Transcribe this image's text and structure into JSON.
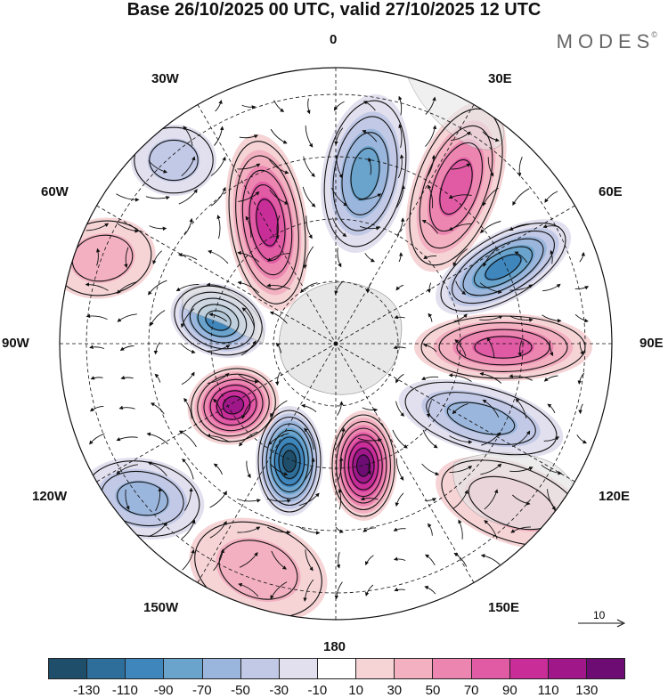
{
  "title": "Base 26/10/2025 00 UTC, valid 27/10/2025 12 UTC",
  "brand": "MODES",
  "brand_mark": "©",
  "longitude_labels": {
    "lon0": "0",
    "lon30e": "30E",
    "lon60e": "60E",
    "lon90e": "90E",
    "lon120e": "120E",
    "lon150e": "150E",
    "lon180": "180",
    "lon150w": "150W",
    "lon120w": "120W",
    "lon90w": "90W",
    "lon60w": "60W",
    "lon30w": "30W"
  },
  "reference_vector": {
    "label": "10"
  },
  "colorbar": {
    "colors": [
      "#1f4e6b",
      "#2d6e9a",
      "#3f86bd",
      "#6aa3cc",
      "#9bb6dc",
      "#c2c9e6",
      "#e2e0ee",
      "#ffffff",
      "#f6d4d6",
      "#f2b0c0",
      "#ec85b0",
      "#e15aa4",
      "#c92e98",
      "#a0178a",
      "#6d0c73"
    ],
    "tick_labels": [
      "-130",
      "-110",
      "-90",
      "-70",
      "-50",
      "-30",
      "-10",
      "10",
      "30",
      "50",
      "70",
      "90",
      "110",
      "130"
    ]
  },
  "anomaly_cells": [
    {
      "id": "south-blue-core",
      "value": -130
    },
    {
      "id": "south-pink-core",
      "value": 130
    },
    {
      "id": "sw-pink-core",
      "value": 110
    },
    {
      "id": "west-blue",
      "value": -90
    },
    {
      "id": "ne-blue",
      "value": -90
    },
    {
      "id": "nw-pink",
      "value": 90
    },
    {
      "id": "north-blue",
      "value": -70
    },
    {
      "id": "ne-pink",
      "value": 70
    },
    {
      "id": "east-pink",
      "value": 70
    },
    {
      "id": "se-blue",
      "value": -50
    },
    {
      "id": "ssw-blue",
      "value": -50
    },
    {
      "id": "nnw-blue",
      "value": -30
    },
    {
      "id": "west-pink",
      "value": 30
    },
    {
      "id": "se-pink",
      "value": 30
    },
    {
      "id": "bottom-pink",
      "value": 30
    }
  ]
}
